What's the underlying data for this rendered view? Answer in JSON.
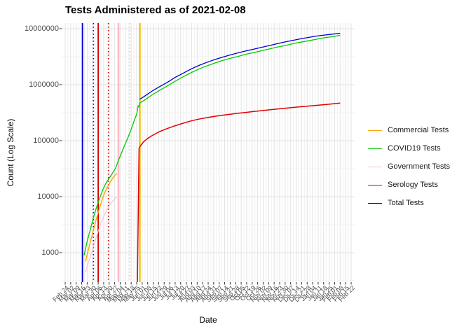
{
  "title": "Tests Administered as of 2021-02-08",
  "y_axis": {
    "label": "Count (Log Scale)",
    "ticks": [
      "10000000",
      "1000000",
      "100000",
      "10000",
      "1000"
    ]
  },
  "x_axis": {
    "label": "Date",
    "ticks": [
      "Feb 24",
      "Mar 02",
      "Mar 09",
      "Mar 16",
      "Mar 23",
      "Mar 30",
      "Apr 06",
      "Apr 13",
      "Apr 20",
      "Apr 27",
      "May 04",
      "May 11",
      "May 18",
      "May 25",
      "Jun 01",
      "Jun 08",
      "Jun 15",
      "Jun 22",
      "Jun 29",
      "Jul 06",
      "Jul 13",
      "Jul 20",
      "Jul 27",
      "Aug 03",
      "Aug 10",
      "Aug 17",
      "Aug 24",
      "Aug 31",
      "Sep 07",
      "Sep 14",
      "Sep 21",
      "Sep 28",
      "Oct 05",
      "Oct 12",
      "Oct 19",
      "Oct 26",
      "Nov 02",
      "Nov 09",
      "Nov 16",
      "Nov 23",
      "Nov 30",
      "Dec 07",
      "Dec 14",
      "Dec 21",
      "Dec 28",
      "Jan 04",
      "Jan 11",
      "Jan 18",
      "Jan 25",
      "Feb 01",
      "Feb 08",
      "Feb 15",
      "Feb 22"
    ]
  },
  "legend": [
    {
      "label": "Commercial Tests",
      "color": "#FFA500"
    },
    {
      "label": "COVID19 Tests",
      "color": "#00CC00"
    },
    {
      "label": "Government Tests",
      "color": "#FFC0CB"
    },
    {
      "label": "Serology Tests",
      "color": "#E00000"
    },
    {
      "label": "Total Tests",
      "color": "#0000CD"
    }
  ],
  "chart_data": {
    "type": "line",
    "title": "Tests Administered as of 2021-02-08",
    "xlabel": "Date",
    "ylabel": "Count (Log Scale)",
    "y_scale": "log10",
    "y_breaks": [
      1000,
      10000,
      100000,
      1000000,
      10000000
    ],
    "ylim": [
      300,
      12500000
    ],
    "x_unit": "days since 2020-02-24",
    "x_range_days": 364,
    "x_tick_every_days": 7,
    "grid": "major+minor",
    "legend_position": "right",
    "series": [
      {
        "name": "Commercial Tests",
        "color": "#FFA500",
        "width": 1.4,
        "points": [
          [
            26,
            700
          ],
          [
            30,
            1200
          ],
          [
            34,
            2000
          ],
          [
            38,
            3300
          ],
          [
            42,
            5200
          ],
          [
            46,
            8000
          ],
          [
            50,
            11500
          ],
          [
            54,
            15000
          ],
          [
            58,
            19000
          ],
          [
            62,
            23000
          ],
          [
            66,
            26000
          ]
        ]
      },
      {
        "name": "COVID19 Tests",
        "color": "#00CC00",
        "width": 1.3,
        "points": [
          [
            24,
            900
          ],
          [
            28,
            1600
          ],
          [
            32,
            2600
          ],
          [
            36,
            4300
          ],
          [
            40,
            6500
          ],
          [
            44,
            9500
          ],
          [
            48,
            13500
          ],
          [
            52,
            17500
          ],
          [
            56,
            21500
          ],
          [
            60,
            26000
          ],
          [
            64,
            32000
          ],
          [
            68,
            45000
          ],
          [
            72,
            62000
          ],
          [
            76,
            85000
          ],
          [
            80,
            115000
          ],
          [
            84,
            160000
          ],
          [
            88,
            230000
          ],
          [
            91,
            300000
          ],
          [
            93,
            420000
          ],
          [
            94,
            400000
          ],
          [
            95,
            470000
          ],
          [
            100,
            520000
          ],
          [
            105,
            580000
          ],
          [
            110,
            650000
          ],
          [
            120,
            790000
          ],
          [
            130,
            950000
          ],
          [
            140,
            1150000
          ],
          [
            150,
            1380000
          ],
          [
            160,
            1630000
          ],
          [
            170,
            1900000
          ],
          [
            180,
            2160000
          ],
          [
            190,
            2420000
          ],
          [
            200,
            2700000
          ],
          [
            210,
            2950000
          ],
          [
            220,
            3200000
          ],
          [
            230,
            3500000
          ],
          [
            240,
            3750000
          ],
          [
            250,
            4050000
          ],
          [
            260,
            4350000
          ],
          [
            270,
            4700000
          ],
          [
            280,
            5000000
          ],
          [
            290,
            5400000
          ],
          [
            300,
            5750000
          ],
          [
            310,
            6100000
          ],
          [
            320,
            6500000
          ],
          [
            330,
            6900000
          ],
          [
            340,
            7200000
          ],
          [
            350,
            7600000
          ]
        ]
      },
      {
        "name": "Government Tests",
        "color": "#FFC0CB",
        "width": 1.1,
        "points": [
          [
            26,
            450
          ],
          [
            30,
            700
          ],
          [
            34,
            1050
          ],
          [
            38,
            1600
          ],
          [
            42,
            2400
          ],
          [
            46,
            3500
          ],
          [
            50,
            4800
          ],
          [
            54,
            6200
          ],
          [
            58,
            7600
          ],
          [
            62,
            8800
          ],
          [
            66,
            10000
          ]
        ]
      },
      {
        "name": "Serology Tests",
        "color": "#E00000",
        "width": 1.5,
        "points": [
          [
            92,
            30
          ],
          [
            93,
            4500
          ],
          [
            94,
            74000
          ],
          [
            97,
            85000
          ],
          [
            100,
            96000
          ],
          [
            105,
            110000
          ],
          [
            110,
            122000
          ],
          [
            115,
            133000
          ],
          [
            120,
            145000
          ],
          [
            130,
            165000
          ],
          [
            140,
            185000
          ],
          [
            150,
            205000
          ],
          [
            160,
            225000
          ],
          [
            170,
            243000
          ],
          [
            180,
            258000
          ],
          [
            190,
            272000
          ],
          [
            200,
            285000
          ],
          [
            210,
            297000
          ],
          [
            220,
            309000
          ],
          [
            230,
            320000
          ],
          [
            240,
            332000
          ],
          [
            250,
            344000
          ],
          [
            260,
            356000
          ],
          [
            270,
            368000
          ],
          [
            280,
            380000
          ],
          [
            290,
            392000
          ],
          [
            300,
            404000
          ],
          [
            310,
            416000
          ],
          [
            320,
            428000
          ],
          [
            330,
            440000
          ],
          [
            340,
            455000
          ],
          [
            350,
            470000
          ]
        ]
      },
      {
        "name": "Total Tests",
        "color": "#0000CD",
        "width": 1.3,
        "points": [
          [
            95,
            550000
          ],
          [
            100,
            610000
          ],
          [
            105,
            680000
          ],
          [
            110,
            760000
          ],
          [
            120,
            920000
          ],
          [
            130,
            1100000
          ],
          [
            140,
            1350000
          ],
          [
            150,
            1600000
          ],
          [
            160,
            1900000
          ],
          [
            170,
            2200000
          ],
          [
            180,
            2500000
          ],
          [
            190,
            2800000
          ],
          [
            200,
            3100000
          ],
          [
            210,
            3400000
          ],
          [
            220,
            3700000
          ],
          [
            230,
            4000000
          ],
          [
            240,
            4300000
          ],
          [
            250,
            4650000
          ],
          [
            260,
            5000000
          ],
          [
            270,
            5400000
          ],
          [
            280,
            5800000
          ],
          [
            290,
            6200000
          ],
          [
            300,
            6600000
          ],
          [
            310,
            7000000
          ],
          [
            320,
            7400000
          ],
          [
            330,
            7700000
          ],
          [
            340,
            8000000
          ],
          [
            350,
            8300000
          ]
        ]
      }
    ],
    "vlines": [
      {
        "color": "#0000CD",
        "style": "solid",
        "day": 22,
        "width": 1.8
      },
      {
        "color": "#0000CD",
        "style": "dotted",
        "day": 36,
        "width": 1.6
      },
      {
        "color": "#CC0000",
        "style": "solid",
        "day": 42,
        "width": 1.8
      },
      {
        "color": "#CC0000",
        "style": "dotted",
        "day": 55,
        "width": 1.6
      },
      {
        "color": "#FFB6C1",
        "style": "solid",
        "day": 68,
        "width": 2.2
      },
      {
        "color": "#FFB6C1",
        "style": "dotted",
        "day": 82,
        "width": 1.6
      },
      {
        "color": "#F2C100",
        "style": "solid",
        "day": 95,
        "width": 2.4
      }
    ]
  }
}
